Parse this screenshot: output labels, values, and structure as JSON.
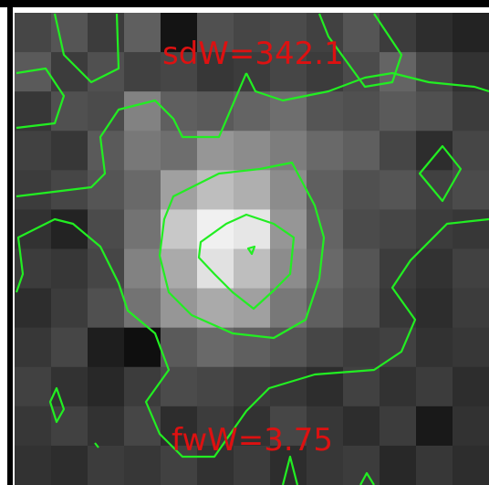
{
  "labels": {
    "top": "sdW=342.1",
    "bottom": "fwW=3.75"
  },
  "colors": {
    "frame": "#000000",
    "background": "#ffffff",
    "contour": "#22ee22",
    "label": "#dd1111"
  }
}
